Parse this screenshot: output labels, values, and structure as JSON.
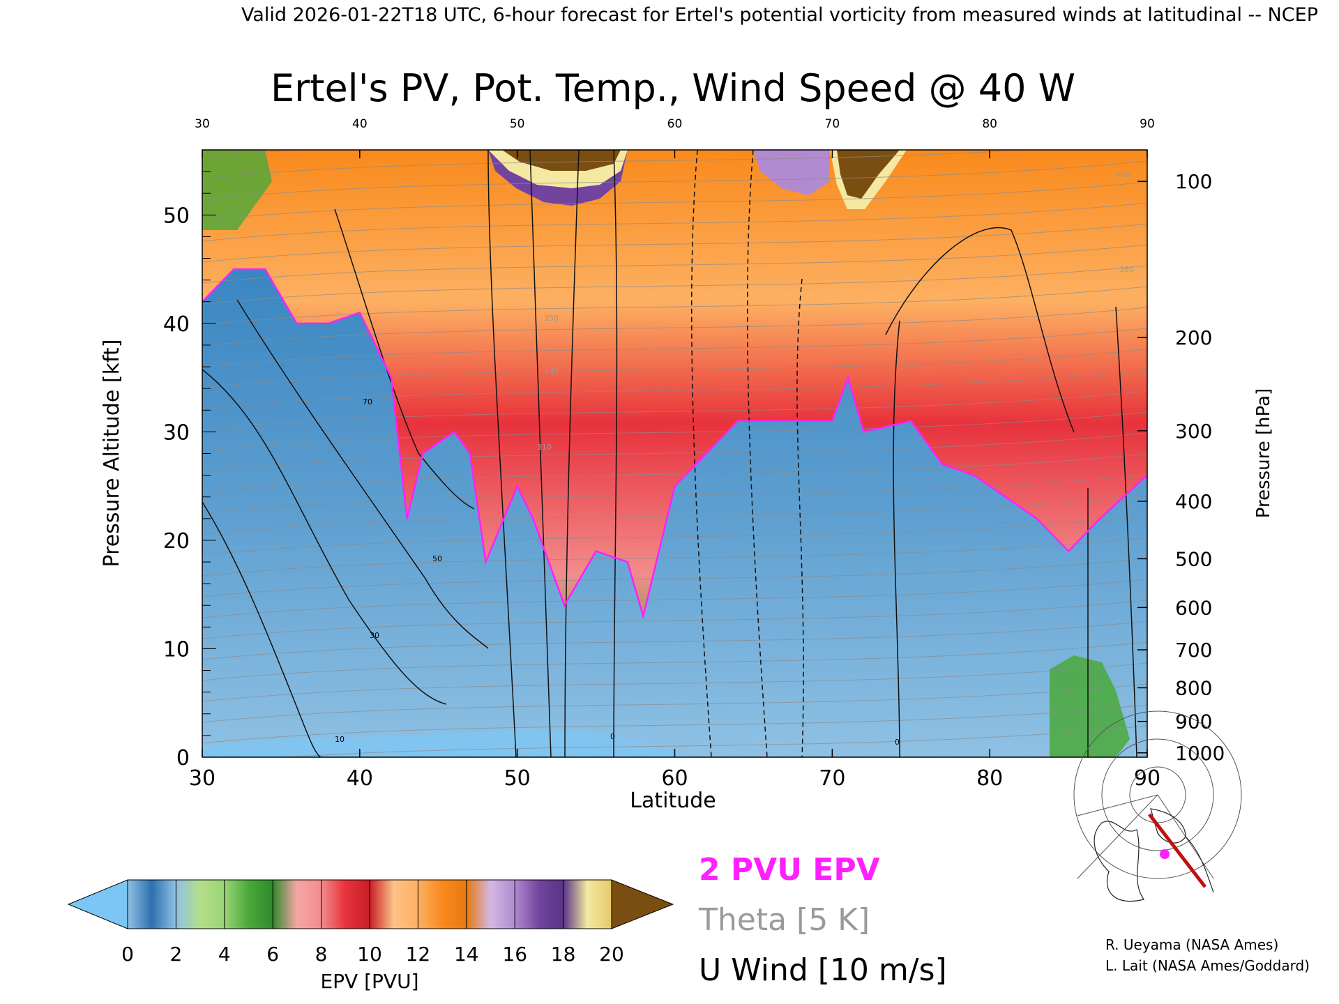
{
  "header": "Valid 2026-01-22T18 UTC, 6-hour forecast for Ertel's potential vorticity from measured winds at latitudinal -- NCEP",
  "chart_data": {
    "type": "heatmap",
    "title": "Ertel's PV, Pot. Temp., Wind Speed @ 40 W",
    "xlabel": "Latitude",
    "ylabel": "Pressure Altitude [kft]",
    "ylabel_right": "Pressure [hPa]",
    "xlim": [
      30,
      90
    ],
    "ylim": [
      0,
      56
    ],
    "x_ticks": [
      "30",
      "40",
      "50",
      "60",
      "70",
      "80",
      "90"
    ],
    "y_ticks": [
      "0",
      "10",
      "20",
      "30",
      "40",
      "50"
    ],
    "pressure_ticks": [
      {
        "label": "100",
        "kft": 53.1
      },
      {
        "label": "200",
        "kft": 38.7
      },
      {
        "label": "300",
        "kft": 30.1
      },
      {
        "label": "400",
        "kft": 23.6
      },
      {
        "label": "500",
        "kft": 18.3
      },
      {
        "label": "600",
        "kft": 13.8
      },
      {
        "label": "700",
        "kft": 9.9
      },
      {
        "label": "800",
        "kft": 6.4
      },
      {
        "label": "900",
        "kft": 3.3
      },
      {
        "label": "1000",
        "kft": 0.4
      }
    ],
    "colorbar": {
      "label": "EPV [PVU]",
      "ticks": [
        "0",
        "2",
        "4",
        "6",
        "8",
        "10",
        "12",
        "14",
        "16",
        "18",
        "20"
      ],
      "under_color": "#7cc6f5",
      "over_color": "#7a4e10",
      "colors": [
        "#3a86c2",
        "#9ad477",
        "#4aa93a",
        "#f28c8c",
        "#e8323c",
        "#fdb062",
        "#f98a1c",
        "#b28ad0",
        "#72449e",
        "#f5e9a2"
      ]
    },
    "tropopause_2pvu_kft": [
      {
        "lat": 30,
        "kft": 42
      },
      {
        "lat": 32,
        "kft": 45
      },
      {
        "lat": 34,
        "kft": 45
      },
      {
        "lat": 36,
        "kft": 40
      },
      {
        "lat": 38,
        "kft": 40
      },
      {
        "lat": 40,
        "kft": 41
      },
      {
        "lat": 42,
        "kft": 35
      },
      {
        "lat": 43,
        "kft": 22
      },
      {
        "lat": 44,
        "kft": 28
      },
      {
        "lat": 46,
        "kft": 30
      },
      {
        "lat": 47,
        "kft": 28
      },
      {
        "lat": 48,
        "kft": 18
      },
      {
        "lat": 50,
        "kft": 25
      },
      {
        "lat": 51,
        "kft": 22
      },
      {
        "lat": 53,
        "kft": 14
      },
      {
        "lat": 55,
        "kft": 19
      },
      {
        "lat": 57,
        "kft": 18
      },
      {
        "lat": 58,
        "kft": 13
      },
      {
        "lat": 60,
        "kft": 25
      },
      {
        "lat": 62,
        "kft": 28
      },
      {
        "lat": 64,
        "kft": 31
      },
      {
        "lat": 66,
        "kft": 31
      },
      {
        "lat": 68,
        "kft": 31
      },
      {
        "lat": 70,
        "kft": 31
      },
      {
        "lat": 71,
        "kft": 35
      },
      {
        "lat": 72,
        "kft": 30
      },
      {
        "lat": 75,
        "kft": 31
      },
      {
        "lat": 77,
        "kft": 27
      },
      {
        "lat": 79,
        "kft": 26
      },
      {
        "lat": 81,
        "kft": 24
      },
      {
        "lat": 83,
        "kft": 22
      },
      {
        "lat": 85,
        "kft": 19
      },
      {
        "lat": 87,
        "kft": 22
      },
      {
        "lat": 90,
        "kft": 26
      }
    ],
    "wind_contour_labels": [
      "0",
      "10",
      "30",
      "50",
      "70"
    ],
    "theta_label_samples": [
      "310",
      "330",
      "350",
      "380",
      "450"
    ]
  },
  "legend": {
    "pv_label": "2 PVU EPV",
    "theta_label": "Theta [5 K]",
    "wind_label": "U Wind [10 m/s]",
    "pv_color": "#ff20ff",
    "theta_color": "#9a9a9a"
  },
  "credits": {
    "line1": "R. Ueyama (NASA Ames)",
    "line2": "L. Lait (NASA Ames/Goddard)"
  },
  "inset_map": {
    "icon": "polar-map-icon",
    "track_color": "#c01010",
    "marker_color": "#ff20ff"
  }
}
